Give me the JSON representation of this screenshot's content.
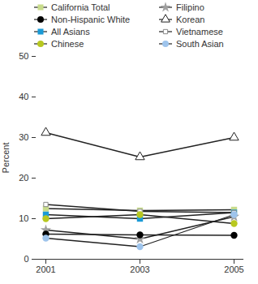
{
  "chart_data": {
    "type": "line",
    "y_label": "Percent",
    "categories": [
      "2001",
      "2003",
      "2005"
    ],
    "ylim": [
      0,
      50
    ],
    "yticks": [
      0,
      10,
      20,
      30,
      40,
      50
    ],
    "legend": "top",
    "series": [
      {
        "name": "California Total",
        "color": "#c8dc8c",
        "marker": "square",
        "values": [
          12.5,
          12.0,
          12.2
        ]
      },
      {
        "name": "Filipino",
        "color": "#a0a0a0",
        "marker": "star",
        "values": [
          7.2,
          5.0,
          10.5
        ]
      },
      {
        "name": "Non-Hispanic White",
        "color": "#000000",
        "marker": "circle",
        "values": [
          6.2,
          6.0,
          5.9
        ]
      },
      {
        "name": "Korean",
        "color": "#ffffff",
        "marker": "triangle_open",
        "values": [
          31.2,
          25.2,
          30.0
        ]
      },
      {
        "name": "All Asians",
        "color": "#1a9ad6",
        "marker": "square",
        "values": [
          11.0,
          10.0,
          11.5
        ]
      },
      {
        "name": "Vietnamese",
        "color": "#ffffff",
        "marker": "square_open",
        "values": [
          13.5,
          11.8,
          11.5
        ]
      },
      {
        "name": "Chinese",
        "color": "#b8c820",
        "marker": "circle",
        "values": [
          10.0,
          11.0,
          8.8
        ]
      },
      {
        "name": "South Asian",
        "color": "#9ec4ec",
        "marker": "circle",
        "values": [
          5.2,
          3.1,
          11.0
        ]
      }
    ]
  }
}
